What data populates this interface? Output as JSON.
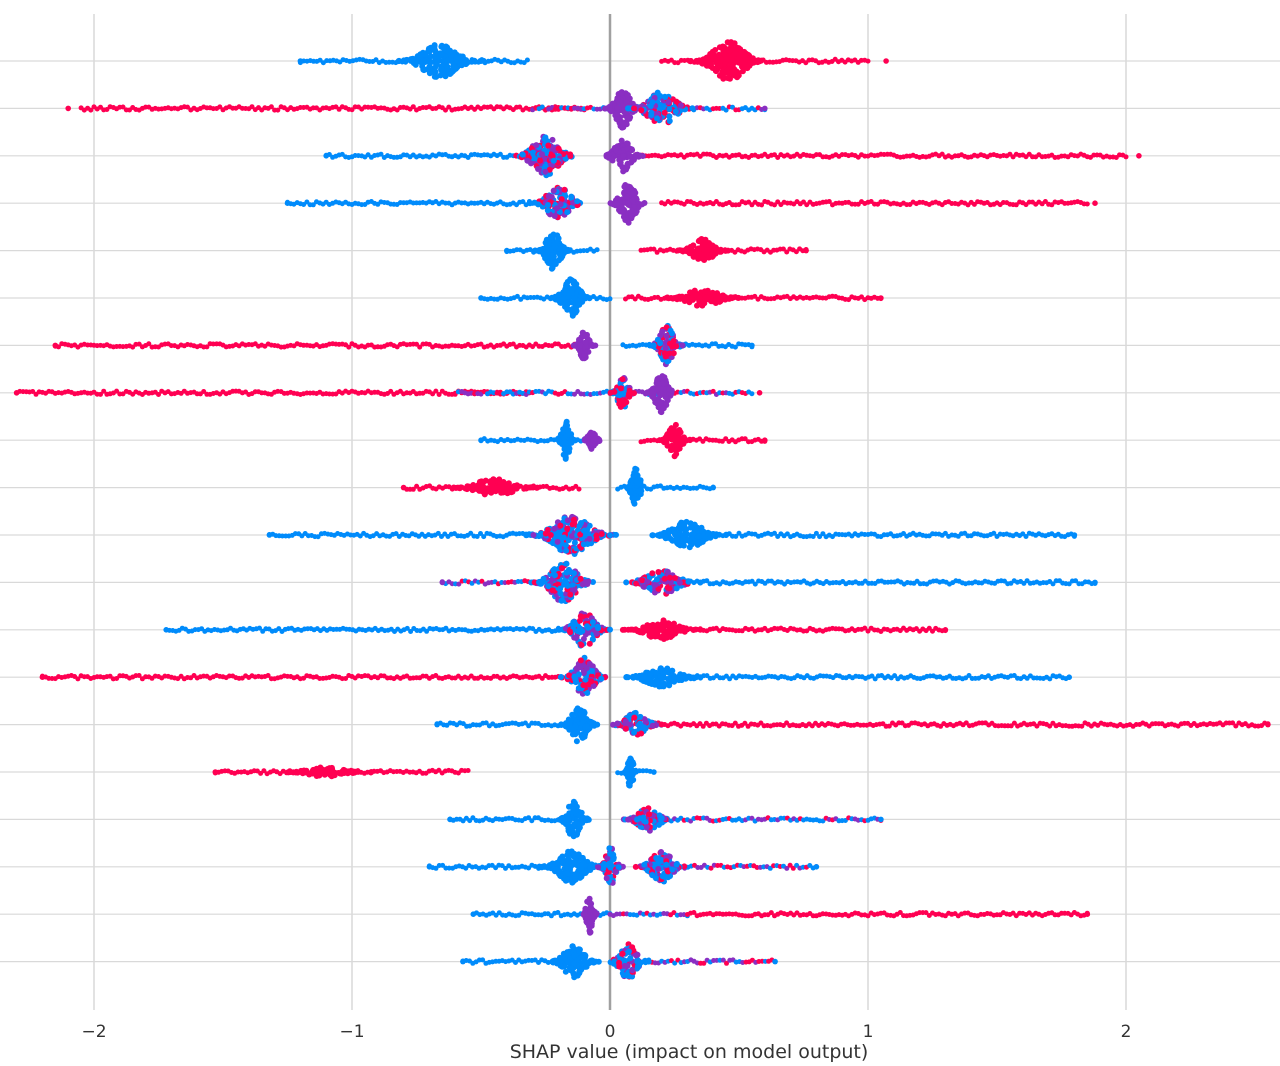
{
  "chart_data": {
    "type": "scatter",
    "subtype": "shap-beeswarm",
    "xlabel": "SHAP value (impact on model output)",
    "xlim": [
      -2.35,
      2.6
    ],
    "xticks": [
      -2,
      -1,
      0,
      1,
      2
    ],
    "xtick_labels": [
      "−2",
      "−1",
      "0",
      "1",
      "2"
    ],
    "grid": true,
    "colors": {
      "low": "#008bfb",
      "mid": "#8a2fc2",
      "high": "#ff0052",
      "grid": "#d9d9d9",
      "zero_line": "#a0a0a0"
    },
    "rows": [
      {
        "min": -1.2,
        "max": 1.07,
        "blobs": [
          {
            "c": -0.66,
            "w": 0.34,
            "h": 17,
            "col": "low"
          },
          {
            "c": 0.46,
            "w": 0.3,
            "h": 20,
            "col": "high"
          }
        ],
        "tails": [
          {
            "from": -1.2,
            "to": -0.55,
            "col": "low"
          },
          {
            "from": -0.75,
            "to": -0.32,
            "col": "low"
          },
          {
            "from": 0.2,
            "to": 1.0,
            "col": "high"
          }
        ]
      },
      {
        "min": -2.1,
        "max": 0.6,
        "blobs": [
          {
            "c": 0.05,
            "w": 0.14,
            "h": 20,
            "col": "mid"
          },
          {
            "c": 0.2,
            "w": 0.26,
            "h": 17,
            "col": "mix"
          }
        ],
        "tails": [
          {
            "from": -2.05,
            "to": -0.1,
            "col": "high"
          },
          {
            "from": -0.3,
            "to": 0.6,
            "col": "mix"
          }
        ]
      },
      {
        "min": -1.1,
        "max": 2.05,
        "blobs": [
          {
            "c": -0.25,
            "w": 0.25,
            "h": 20,
            "col": "mix"
          },
          {
            "c": 0.05,
            "w": 0.16,
            "h": 16,
            "col": "mid"
          }
        ],
        "tails": [
          {
            "from": -1.1,
            "to": -0.3,
            "col": "low"
          },
          {
            "from": 0.1,
            "to": 2.0,
            "col": "high"
          }
        ]
      },
      {
        "min": -1.25,
        "max": 1.88,
        "blobs": [
          {
            "c": -0.2,
            "w": 0.22,
            "h": 17,
            "col": "mix"
          },
          {
            "c": 0.07,
            "w": 0.15,
            "h": 20,
            "col": "mid"
          }
        ],
        "tails": [
          {
            "from": -1.25,
            "to": -0.2,
            "col": "low"
          },
          {
            "from": 0.2,
            "to": 1.85,
            "col": "high"
          }
        ]
      },
      {
        "min": -0.4,
        "max": 0.76,
        "blobs": [
          {
            "c": -0.22,
            "w": 0.14,
            "h": 19,
            "col": "low"
          },
          {
            "c": 0.36,
            "w": 0.2,
            "h": 12,
            "col": "high"
          }
        ],
        "tails": [
          {
            "from": -0.4,
            "to": -0.05,
            "col": "low"
          },
          {
            "from": 0.12,
            "to": 0.76,
            "col": "high"
          }
        ]
      },
      {
        "min": -0.5,
        "max": 1.05,
        "blobs": [
          {
            "c": -0.15,
            "w": 0.16,
            "h": 19,
            "col": "low"
          },
          {
            "c": 0.36,
            "w": 0.3,
            "h": 9,
            "col": "high"
          }
        ],
        "tails": [
          {
            "from": -0.5,
            "to": 0.0,
            "col": "low"
          },
          {
            "from": 0.06,
            "to": 1.05,
            "col": "high"
          }
        ]
      },
      {
        "min": -2.15,
        "max": 0.55,
        "blobs": [
          {
            "c": -0.1,
            "w": 0.09,
            "h": 14,
            "col": "mid"
          },
          {
            "c": 0.22,
            "w": 0.13,
            "h": 20,
            "col": "mix"
          }
        ],
        "tails": [
          {
            "from": -2.15,
            "to": -0.1,
            "col": "high"
          },
          {
            "from": 0.05,
            "to": 0.55,
            "col": "low"
          }
        ]
      },
      {
        "min": -2.3,
        "max": 0.58,
        "blobs": [
          {
            "c": 0.05,
            "w": 0.1,
            "h": 16,
            "col": "mix"
          },
          {
            "c": 0.2,
            "w": 0.12,
            "h": 20,
            "col": "mid"
          }
        ],
        "tails": [
          {
            "from": -2.3,
            "to": -0.3,
            "col": "high"
          },
          {
            "from": -0.6,
            "to": 0.55,
            "col": "mix"
          }
        ]
      },
      {
        "min": -0.5,
        "max": 0.6,
        "blobs": [
          {
            "c": -0.17,
            "w": 0.08,
            "h": 19,
            "col": "low"
          },
          {
            "c": -0.07,
            "w": 0.08,
            "h": 9,
            "col": "mid"
          },
          {
            "c": 0.25,
            "w": 0.12,
            "h": 16,
            "col": "high"
          }
        ],
        "tails": [
          {
            "from": -0.5,
            "to": -0.1,
            "col": "low"
          },
          {
            "from": 0.12,
            "to": 0.6,
            "col": "high"
          }
        ]
      },
      {
        "min": -0.8,
        "max": 0.4,
        "blobs": [
          {
            "c": -0.45,
            "w": 0.35,
            "h": 9,
            "col": "high"
          },
          {
            "c": 0.1,
            "w": 0.08,
            "h": 20,
            "col": "low"
          }
        ],
        "tails": [
          {
            "from": -0.8,
            "to": -0.12,
            "col": "high"
          },
          {
            "from": 0.03,
            "to": 0.4,
            "col": "low"
          }
        ]
      },
      {
        "min": -1.32,
        "max": 1.8,
        "blobs": [
          {
            "c": -0.15,
            "w": 0.35,
            "h": 20,
            "col": "mix"
          },
          {
            "c": 0.3,
            "w": 0.3,
            "h": 14,
            "col": "low"
          }
        ],
        "tails": [
          {
            "from": -1.32,
            "to": -0.2,
            "col": "low"
          },
          {
            "from": 0.3,
            "to": 1.8,
            "col": "low"
          }
        ]
      },
      {
        "min": -0.65,
        "max": 1.88,
        "blobs": [
          {
            "c": -0.18,
            "w": 0.25,
            "h": 20,
            "col": "mix"
          },
          {
            "c": 0.2,
            "w": 0.3,
            "h": 12,
            "col": "mix"
          }
        ],
        "tails": [
          {
            "from": -0.65,
            "to": -0.1,
            "col": "mix"
          },
          {
            "from": 0.3,
            "to": 1.88,
            "col": "low"
          }
        ]
      },
      {
        "min": -1.72,
        "max": 1.3,
        "blobs": [
          {
            "c": -0.1,
            "w": 0.2,
            "h": 18,
            "col": "mix"
          },
          {
            "c": 0.2,
            "w": 0.3,
            "h": 10,
            "col": "high"
          }
        ],
        "tails": [
          {
            "from": -1.72,
            "to": -0.15,
            "col": "low"
          },
          {
            "from": 0.1,
            "to": 1.3,
            "col": "high"
          }
        ]
      },
      {
        "min": -2.2,
        "max": 1.78,
        "blobs": [
          {
            "c": -0.1,
            "w": 0.18,
            "h": 20,
            "col": "mix"
          },
          {
            "c": 0.2,
            "w": 0.3,
            "h": 10,
            "col": "low"
          }
        ],
        "tails": [
          {
            "from": -2.2,
            "to": -0.2,
            "col": "high"
          },
          {
            "from": 0.1,
            "to": 1.78,
            "col": "low"
          }
        ]
      },
      {
        "min": -0.67,
        "max": 2.55,
        "blobs": [
          {
            "c": -0.12,
            "w": 0.15,
            "h": 18,
            "col": "low"
          },
          {
            "c": 0.1,
            "w": 0.2,
            "h": 12,
            "col": "mix"
          }
        ],
        "tails": [
          {
            "from": -0.67,
            "to": -0.1,
            "col": "low"
          },
          {
            "from": 0.1,
            "to": 2.55,
            "col": "high"
          }
        ]
      },
      {
        "min": -1.53,
        "max": 0.17,
        "blobs": [
          {
            "c": -1.1,
            "w": 0.35,
            "h": 5,
            "col": "high"
          },
          {
            "c": 0.08,
            "w": 0.05,
            "h": 19,
            "col": "low"
          }
        ],
        "tails": [
          {
            "from": -1.53,
            "to": -0.55,
            "col": "high"
          },
          {
            "from": 0.03,
            "to": 0.17,
            "col": "low"
          }
        ]
      },
      {
        "min": -0.62,
        "max": 1.05,
        "blobs": [
          {
            "c": -0.14,
            "w": 0.13,
            "h": 19,
            "col": "low"
          },
          {
            "c": 0.15,
            "w": 0.2,
            "h": 12,
            "col": "mix"
          }
        ],
        "tails": [
          {
            "from": -0.62,
            "to": -0.1,
            "col": "low"
          },
          {
            "from": 0.1,
            "to": 1.05,
            "col": "mix"
          }
        ]
      },
      {
        "min": -0.7,
        "max": 0.8,
        "blobs": [
          {
            "c": -0.15,
            "w": 0.25,
            "h": 16,
            "col": "low"
          },
          {
            "c": 0.0,
            "w": 0.1,
            "h": 20,
            "col": "mix"
          },
          {
            "c": 0.2,
            "w": 0.2,
            "h": 16,
            "col": "mix"
          }
        ],
        "tails": [
          {
            "from": -0.7,
            "to": -0.2,
            "col": "low"
          },
          {
            "from": 0.2,
            "to": 0.8,
            "col": "mix"
          }
        ]
      },
      {
        "min": -0.53,
        "max": 1.85,
        "blobs": [
          {
            "c": -0.08,
            "w": 0.06,
            "h": 20,
            "col": "mid"
          }
        ],
        "tails": [
          {
            "from": -0.53,
            "to": 0.0,
            "col": "low"
          },
          {
            "from": 0.0,
            "to": 0.3,
            "col": "mix"
          },
          {
            "from": 0.3,
            "to": 1.85,
            "col": "high"
          }
        ]
      },
      {
        "min": -0.57,
        "max": 0.64,
        "blobs": [
          {
            "c": -0.14,
            "w": 0.2,
            "h": 16,
            "col": "low"
          },
          {
            "c": 0.07,
            "w": 0.16,
            "h": 18,
            "col": "mix"
          }
        ],
        "tails": [
          {
            "from": -0.57,
            "to": -0.15,
            "col": "low"
          },
          {
            "from": 0.1,
            "to": 0.64,
            "col": "mix"
          }
        ]
      }
    ]
  }
}
